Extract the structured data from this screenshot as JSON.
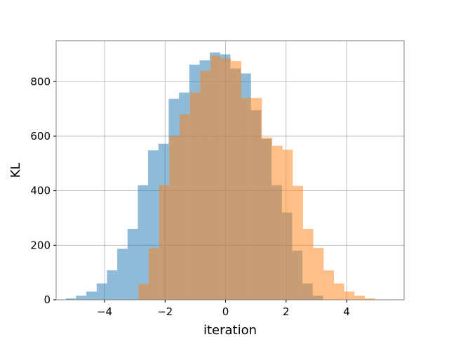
{
  "chart_data": {
    "type": "bar",
    "title": "",
    "xlabel": "iteration",
    "ylabel": "KL",
    "xlim": [
      -5.6,
      5.9
    ],
    "ylim": [
      0,
      950
    ],
    "xticks": [
      -4,
      -2,
      0,
      2,
      4
    ],
    "xtick_labels": [
      "−4",
      "−2",
      "0",
      "2",
      "4"
    ],
    "yticks": [
      0,
      200,
      400,
      600,
      800
    ],
    "ytick_labels": [
      "0",
      "200",
      "400",
      "600",
      "800"
    ],
    "grid": true,
    "legend": "none",
    "series": [
      {
        "color": "#1f77b4",
        "opacity": 0.5,
        "bin_width": 0.34,
        "bins": [
          {
            "x0": -5.28,
            "value": 5
          },
          {
            "x0": -4.94,
            "value": 15
          },
          {
            "x0": -4.6,
            "value": 30
          },
          {
            "x0": -4.26,
            "value": 60
          },
          {
            "x0": -3.92,
            "value": 108
          },
          {
            "x0": -3.58,
            "value": 187
          },
          {
            "x0": -3.24,
            "value": 260
          },
          {
            "x0": -2.9,
            "value": 420
          },
          {
            "x0": -2.56,
            "value": 548
          },
          {
            "x0": -2.22,
            "value": 572
          },
          {
            "x0": -1.88,
            "value": 737
          },
          {
            "x0": -1.54,
            "value": 760
          },
          {
            "x0": -1.2,
            "value": 862
          },
          {
            "x0": -0.86,
            "value": 878
          },
          {
            "x0": -0.52,
            "value": 907
          },
          {
            "x0": -0.18,
            "value": 900
          },
          {
            "x0": 0.16,
            "value": 848
          },
          {
            "x0": 0.5,
            "value": 830
          },
          {
            "x0": 0.84,
            "value": 695
          },
          {
            "x0": 1.18,
            "value": 590
          },
          {
            "x0": 1.52,
            "value": 420
          },
          {
            "x0": 1.86,
            "value": 320
          },
          {
            "x0": 2.2,
            "value": 180
          },
          {
            "x0": 2.54,
            "value": 60
          },
          {
            "x0": 2.88,
            "value": 15
          }
        ]
      },
      {
        "color": "#ff7f0e",
        "opacity": 0.5,
        "bin_width": 0.34,
        "bins": [
          {
            "x0": -2.88,
            "value": 58
          },
          {
            "x0": -2.54,
            "value": 190
          },
          {
            "x0": -2.2,
            "value": 420
          },
          {
            "x0": -1.86,
            "value": 600
          },
          {
            "x0": -1.52,
            "value": 680
          },
          {
            "x0": -1.18,
            "value": 760
          },
          {
            "x0": -0.84,
            "value": 840
          },
          {
            "x0": -0.5,
            "value": 895
          },
          {
            "x0": -0.16,
            "value": 885
          },
          {
            "x0": 0.18,
            "value": 875
          },
          {
            "x0": 0.52,
            "value": 740
          },
          {
            "x0": 0.86,
            "value": 740
          },
          {
            "x0": 1.2,
            "value": 595
          },
          {
            "x0": 1.54,
            "value": 565
          },
          {
            "x0": 1.88,
            "value": 550
          },
          {
            "x0": 2.22,
            "value": 418
          },
          {
            "x0": 2.56,
            "value": 260
          },
          {
            "x0": 2.9,
            "value": 190
          },
          {
            "x0": 3.24,
            "value": 108
          },
          {
            "x0": 3.58,
            "value": 60
          },
          {
            "x0": 3.92,
            "value": 30
          },
          {
            "x0": 4.26,
            "value": 15
          },
          {
            "x0": 4.6,
            "value": 5
          }
        ]
      }
    ]
  }
}
